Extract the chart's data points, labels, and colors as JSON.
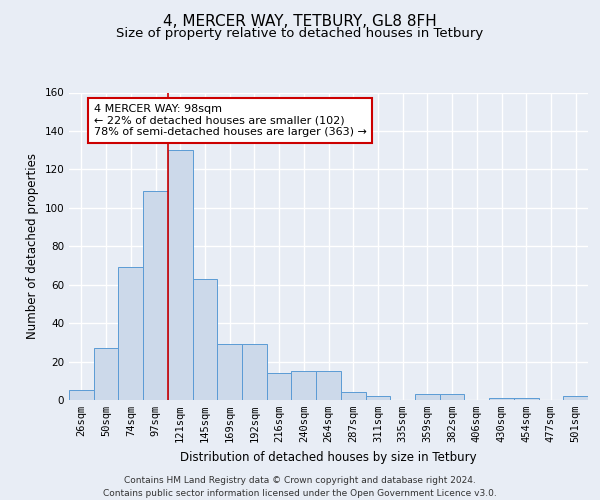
{
  "title1": "4, MERCER WAY, TETBURY, GL8 8FH",
  "title2": "Size of property relative to detached houses in Tetbury",
  "xlabel": "Distribution of detached houses by size in Tetbury",
  "ylabel": "Number of detached properties",
  "bar_labels": [
    "26sqm",
    "50sqm",
    "74sqm",
    "97sqm",
    "121sqm",
    "145sqm",
    "169sqm",
    "192sqm",
    "216sqm",
    "240sqm",
    "264sqm",
    "287sqm",
    "311sqm",
    "335sqm",
    "359sqm",
    "382sqm",
    "406sqm",
    "430sqm",
    "454sqm",
    "477sqm",
    "501sqm"
  ],
  "bar_values": [
    5,
    27,
    69,
    109,
    130,
    63,
    29,
    29,
    14,
    15,
    15,
    4,
    2,
    0,
    3,
    3,
    0,
    1,
    1,
    0,
    2
  ],
  "bar_color": "#ccd9ea",
  "bar_edge_color": "#5b9bd5",
  "ylim": [
    0,
    160
  ],
  "yticks": [
    0,
    20,
    40,
    60,
    80,
    100,
    120,
    140,
    160
  ],
  "red_line_x": 3.5,
  "annotation_line1": "4 MERCER WAY: 98sqm",
  "annotation_line2": "← 22% of detached houses are smaller (102)",
  "annotation_line3": "78% of semi-detached houses are larger (363) →",
  "annotation_box_color": "#ffffff",
  "annotation_box_edge": "#cc0000",
  "footnote": "Contains HM Land Registry data © Crown copyright and database right 2024.\nContains public sector information licensed under the Open Government Licence v3.0.",
  "bg_color": "#e8edf5",
  "plot_bg_color": "#e8edf5",
  "grid_color": "#ffffff",
  "title1_fontsize": 11,
  "title2_fontsize": 9.5,
  "axis_label_fontsize": 8.5,
  "tick_fontsize": 7.5,
  "annotation_fontsize": 8,
  "footnote_fontsize": 6.5
}
